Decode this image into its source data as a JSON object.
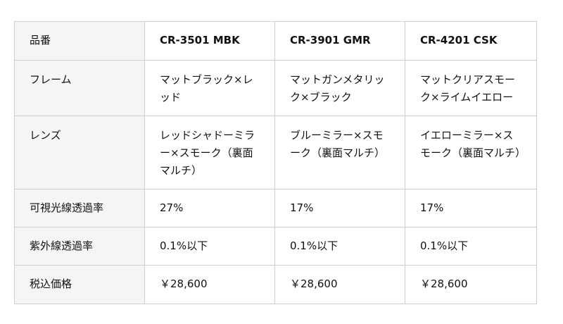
{
  "table": {
    "header": {
      "label": "品番",
      "models": [
        "CR-3501 MBK",
        "CR-3901 GMR",
        "CR-4201 CSK"
      ]
    },
    "rows": [
      {
        "label": "フレーム",
        "values": [
          "マットブラック×レッド",
          "マットガンメタリック×ブラック",
          "マットクリアスモーク×ライムイエロー"
        ]
      },
      {
        "label": "レンズ",
        "values": [
          "レッドシャドーミラー×スモーク（裏面マルチ）",
          "ブルーミラー×スモーク（裏面マルチ）",
          "イエローミラー×スモーク（裏面マルチ）"
        ]
      },
      {
        "label": "可視光線透過率",
        "values": [
          "27%",
          "17%",
          "17%"
        ]
      },
      {
        "label": "紫外線透過率",
        "values": [
          "0.1%以下",
          "0.1%以下",
          "0.1%以下"
        ]
      },
      {
        "label": "税込価格",
        "values": [
          "￥28,600",
          "￥28,600",
          "￥28,600"
        ]
      }
    ]
  }
}
